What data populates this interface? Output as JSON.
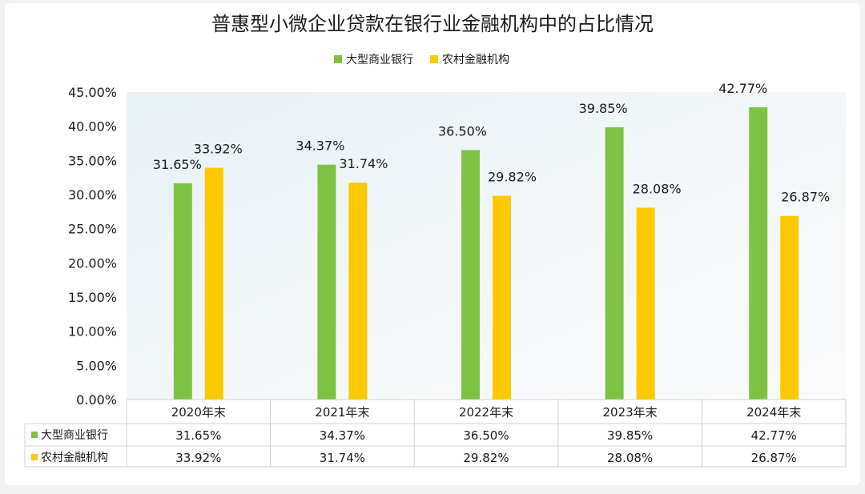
{
  "chart_data": {
    "type": "bar",
    "title": "普惠型小微企业贷款在银行业金融机构中的占比情况",
    "categories": [
      "2020年末",
      "2021年末",
      "2022年末",
      "2023年末",
      "2024年末"
    ],
    "series": [
      {
        "name": "大型商业银行",
        "values": [
          31.65,
          34.37,
          36.5,
          39.85,
          42.77
        ],
        "labels": [
          "31.65%",
          "34.37%",
          "36.50%",
          "39.85%",
          "42.77%"
        ],
        "color": "#7dc242"
      },
      {
        "name": "农村金融机构",
        "values": [
          33.92,
          31.74,
          29.82,
          28.08,
          26.87
        ],
        "labels": [
          "33.92%",
          "31.74%",
          "29.82%",
          "28.08%",
          "26.87%"
        ],
        "color": "#fcc800"
      }
    ],
    "ylim": [
      0,
      45
    ],
    "yticks": [
      "0.00%",
      "5.00%",
      "10.00%",
      "15.00%",
      "20.00%",
      "25.00%",
      "30.00%",
      "35.00%",
      "40.00%",
      "45.00%"
    ],
    "legend_position": "top-center",
    "data_table": true,
    "grid": false
  },
  "colors": {
    "plot_background": "#eef4f8",
    "table_border": "#d0d0d0"
  }
}
